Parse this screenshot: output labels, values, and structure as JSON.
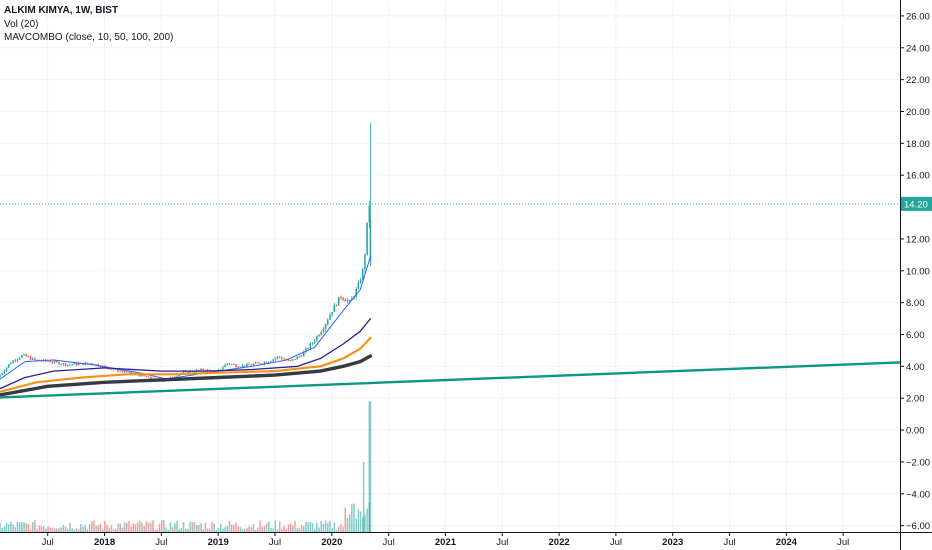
{
  "legend": {
    "symbol": "ALKIM KIMYA, 1W, BIST",
    "volume": "Vol (20)",
    "indicator": "MAVCOMBO (close, 10, 50, 100, 200)"
  },
  "chart_data": {
    "type": "candlestick",
    "price_axis": {
      "ylim": [
        -6.4,
        27.0
      ],
      "ticks": [
        "26.00",
        "24.00",
        "22.00",
        "20.00",
        "18.00",
        "16.00",
        "12.00",
        "10.00",
        "8.00",
        "6.00",
        "4.00",
        "2.00",
        "0.00",
        "−2.00",
        "−4.00",
        "−6.00"
      ],
      "tick_values": [
        26,
        24,
        22,
        20,
        18,
        16,
        12,
        10,
        8,
        6,
        4,
        2,
        0,
        -2,
        -4,
        -6
      ],
      "last_price": "14.20",
      "last_price_value": 14.2
    },
    "time_axis": {
      "labels": [
        "Jul",
        "2018",
        "Jul",
        "2019",
        "Jul",
        "2020",
        "Jul",
        "2021",
        "Jul",
        "2022",
        "Jul",
        "2023",
        "Jul",
        "2024",
        "Jul"
      ],
      "label_dates": [
        2017.5,
        2018.0,
        2018.5,
        2019.0,
        2019.5,
        2020.0,
        2020.5,
        2021.0,
        2021.5,
        2022.0,
        2022.5,
        2023.0,
        2023.5,
        2024.0,
        2024.5
      ],
      "xlim": [
        2017.08,
        2025.0
      ]
    },
    "price_keypoints": [
      [
        2017.08,
        3.3
      ],
      [
        2017.2,
        4.3
      ],
      [
        2017.3,
        4.7
      ],
      [
        2017.4,
        4.4
      ],
      [
        2017.55,
        4.3
      ],
      [
        2017.7,
        4.1
      ],
      [
        2017.9,
        4.2
      ],
      [
        2018.1,
        3.8
      ],
      [
        2018.3,
        3.5
      ],
      [
        2018.45,
        3.2
      ],
      [
        2018.55,
        3.1
      ],
      [
        2018.7,
        3.6
      ],
      [
        2018.9,
        3.8
      ],
      [
        2019.0,
        3.6
      ],
      [
        2019.1,
        4.2
      ],
      [
        2019.2,
        4.0
      ],
      [
        2019.3,
        4.1
      ],
      [
        2019.45,
        4.3
      ],
      [
        2019.55,
        4.6
      ],
      [
        2019.65,
        4.3
      ],
      [
        2019.75,
        4.7
      ],
      [
        2019.85,
        5.5
      ],
      [
        2019.95,
        6.5
      ],
      [
        2020.02,
        7.5
      ],
      [
        2020.1,
        8.4
      ],
      [
        2020.18,
        8.0
      ],
      [
        2020.25,
        9.0
      ],
      [
        2020.3,
        10.2
      ],
      [
        2020.33,
        12.8
      ],
      [
        2020.34,
        14.2
      ]
    ],
    "series": [
      {
        "name": "MA 10",
        "color": "#2962FF",
        "width": 1,
        "points": [
          [
            2017.08,
            3.2
          ],
          [
            2017.3,
            4.3
          ],
          [
            2017.55,
            4.4
          ],
          [
            2017.9,
            4.1
          ],
          [
            2018.3,
            3.6
          ],
          [
            2018.55,
            3.2
          ],
          [
            2018.9,
            3.6
          ],
          [
            2019.3,
            4.0
          ],
          [
            2019.6,
            4.4
          ],
          [
            2019.85,
            5.2
          ],
          [
            2020.1,
            7.5
          ],
          [
            2020.25,
            8.8
          ],
          [
            2020.34,
            10.9
          ]
        ]
      },
      {
        "name": "MA 50",
        "color": "#311B92",
        "width": 1.3,
        "points": [
          [
            2017.08,
            2.6
          ],
          [
            2017.3,
            3.3
          ],
          [
            2017.55,
            3.7
          ],
          [
            2018.0,
            3.9
          ],
          [
            2018.5,
            3.7
          ],
          [
            2018.9,
            3.7
          ],
          [
            2019.3,
            3.8
          ],
          [
            2019.7,
            4.0
          ],
          [
            2019.9,
            4.5
          ],
          [
            2020.1,
            5.4
          ],
          [
            2020.25,
            6.2
          ],
          [
            2020.34,
            7.0
          ]
        ]
      },
      {
        "name": "MA 100",
        "color": "#F7931A",
        "width": 2.2,
        "points": [
          [
            2017.08,
            2.4
          ],
          [
            2017.4,
            3.0
          ],
          [
            2017.8,
            3.3
          ],
          [
            2018.2,
            3.5
          ],
          [
            2018.6,
            3.5
          ],
          [
            2019.0,
            3.6
          ],
          [
            2019.5,
            3.7
          ],
          [
            2019.9,
            4.0
          ],
          [
            2020.1,
            4.5
          ],
          [
            2020.25,
            5.1
          ],
          [
            2020.34,
            5.8
          ]
        ]
      },
      {
        "name": "MA 200",
        "color": "#363A45",
        "width": 3.4,
        "points": [
          [
            2017.08,
            2.2
          ],
          [
            2017.5,
            2.75
          ],
          [
            2018.0,
            3.0
          ],
          [
            2018.5,
            3.15
          ],
          [
            2019.0,
            3.3
          ],
          [
            2019.5,
            3.45
          ],
          [
            2019.9,
            3.7
          ],
          [
            2020.1,
            4.0
          ],
          [
            2020.25,
            4.3
          ],
          [
            2020.34,
            4.65
          ]
        ]
      },
      {
        "name": "Trendline",
        "color": "#089981",
        "width": 2.4,
        "points": [
          [
            2017.08,
            2.05
          ],
          [
            2025.0,
            4.25
          ]
        ]
      }
    ],
    "volume_spikes": [
      [
        2020.28,
        -2.0
      ],
      [
        2020.33,
        1.8
      ]
    ],
    "colors": {
      "up": "#26a69a",
      "down": "#ef5350",
      "grid": "#f0f3fa",
      "axis": "#131722",
      "price_line": "#26a69a",
      "price_tag": "#26a69a"
    }
  }
}
